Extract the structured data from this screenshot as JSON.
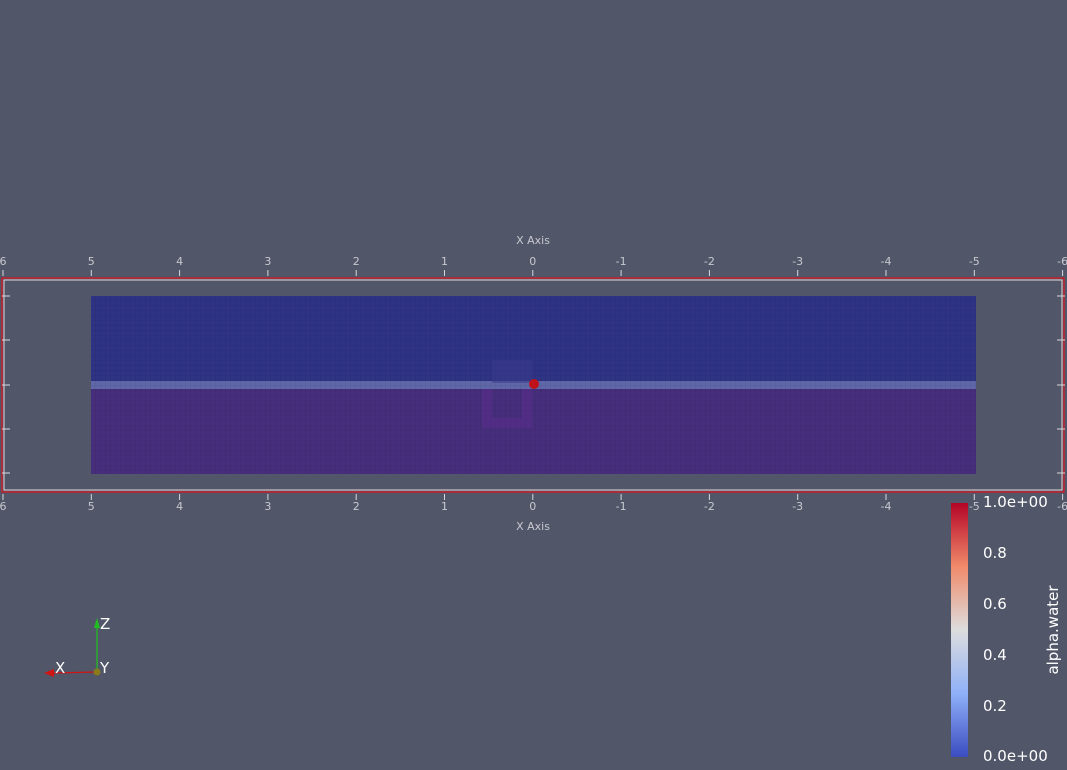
{
  "scene": {
    "x_axis_title": "X Axis",
    "x_ticks": [
      "6",
      "5",
      "4",
      "3",
      "2",
      "1",
      "0",
      "-1",
      "-2",
      "-3",
      "-4",
      "-5",
      "-6"
    ],
    "background": "#525669",
    "outline_color": "#e0141c",
    "air_color": "#2e3384",
    "water_color": "#472e7c",
    "interface_color": "#5f67a8"
  },
  "colorbar": {
    "title": "alpha.water",
    "labels": [
      "1.0e+00",
      "0.8",
      "0.6",
      "0.4",
      "0.2",
      "0.0e+00"
    ],
    "range": [
      0,
      1
    ],
    "colors": {
      "high": "#b40426",
      "mid": "#dddddd",
      "low": "#3b4cc0"
    }
  },
  "orientation": {
    "x_label": "X",
    "y_label": "Y",
    "z_label": "Z"
  }
}
